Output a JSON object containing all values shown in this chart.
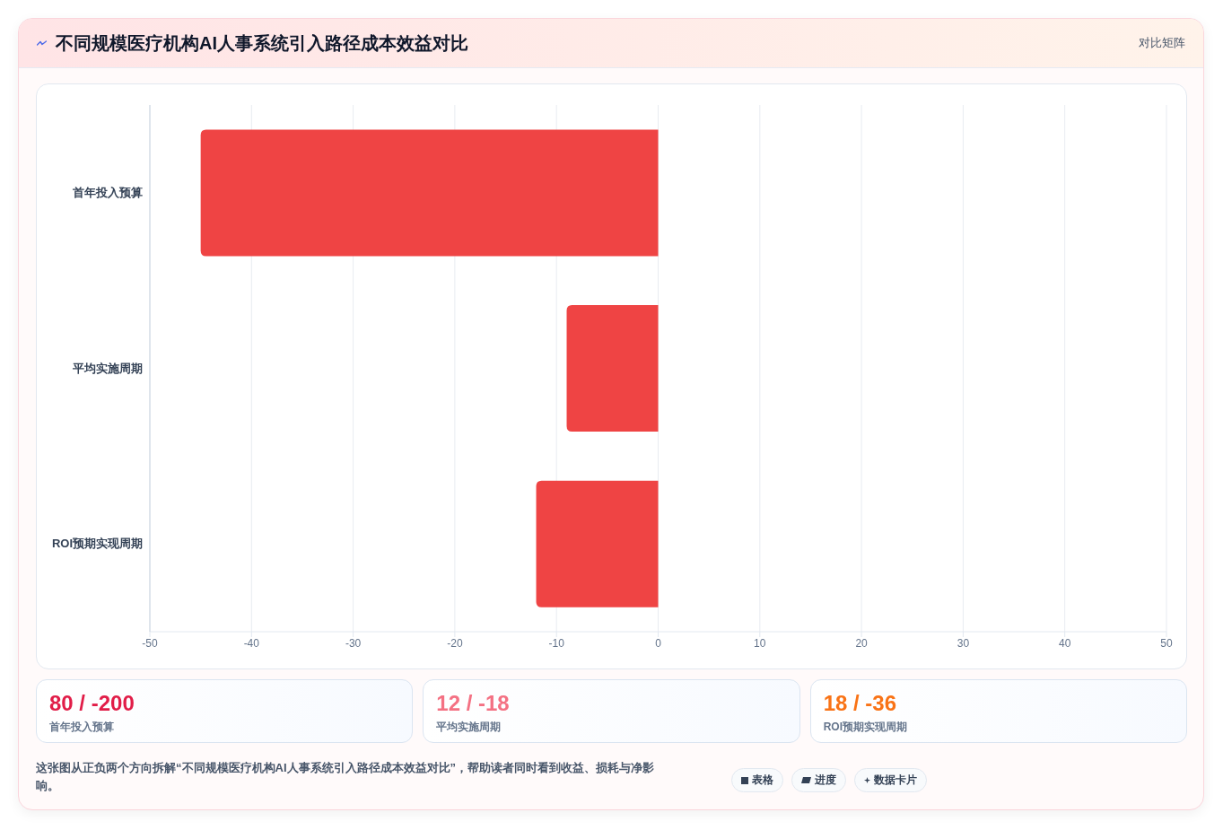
{
  "chart_data": {
    "type": "bar",
    "orientation": "horizontal",
    "title": "不同规模医疗机构AI人事系统引入路径成本效益对比",
    "subtitle": "对比矩阵",
    "categories": [
      "首年投入预算",
      "平均实施周期",
      "ROI预期实现周期"
    ],
    "values": [
      -45,
      -9,
      -12
    ],
    "color": "#ef4444",
    "xlim": [
      -50,
      50
    ],
    "xticks": [
      -50,
      -40,
      -30,
      -20,
      -10,
      0,
      10,
      20,
      30,
      40,
      50
    ],
    "grid": "x",
    "annotations": [
      "80 / -200",
      "12 / -18",
      "18 / -36",
      "这张图从正负两个方向拆解“不同规模医疗机构AI人事系统引入路径成本效益对比”，帮助读者同时看到收益、损耗与净影响。",
      "表格",
      "进度",
      "数据卡片"
    ]
  }
}
